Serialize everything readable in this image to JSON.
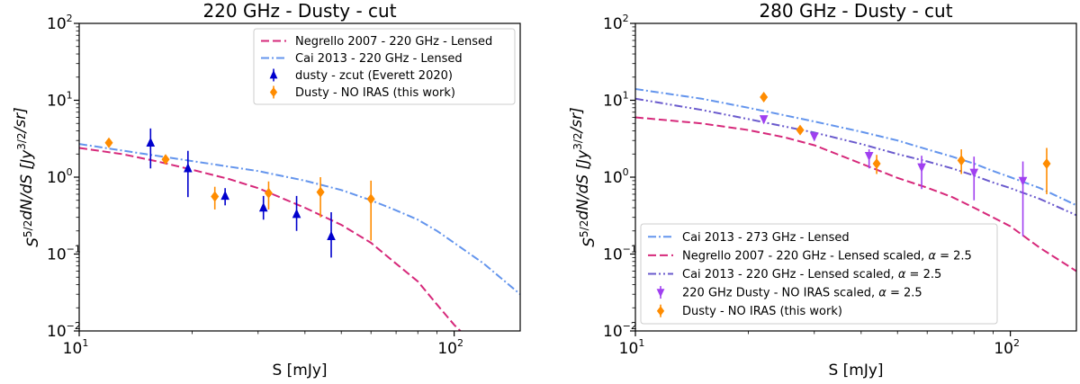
{
  "chart_data": [
    {
      "type": "scatter",
      "title": "220 GHz - Dusty - cut",
      "xlabel": "S [mJy]",
      "ylabel": "S^{5/2}dN/dS [Jy^{3/2}/sr]",
      "xscale": "log",
      "yscale": "log",
      "xlim": [
        10,
        150
      ],
      "ylim": [
        0.01,
        100
      ],
      "x_ticks": [
        {
          "value": 10,
          "base": "10",
          "exp": "1"
        },
        {
          "value": 100,
          "base": "10",
          "exp": "2"
        }
      ],
      "y_ticks": [
        {
          "value": 0.01,
          "base": "10",
          "exp": "−2"
        },
        {
          "value": 0.1,
          "base": "10",
          "exp": "−1"
        },
        {
          "value": 1,
          "base": "10",
          "exp": "0"
        },
        {
          "value": 10,
          "base": "10",
          "exp": "1"
        },
        {
          "value": 100,
          "base": "10",
          "exp": "2"
        }
      ],
      "legend_position": "top-right",
      "series": [
        {
          "name": "Negrello 2007 - 220 GHz - Lensed",
          "kind": "line",
          "style": "dashed",
          "color": "#d6287a",
          "x": [
            10,
            13,
            16,
            20,
            25,
            30,
            40,
            50,
            60,
            70,
            80,
            90,
            100,
            105
          ],
          "y": [
            2.4,
            2.0,
            1.62,
            1.25,
            0.95,
            0.72,
            0.4,
            0.24,
            0.14,
            0.075,
            0.044,
            0.022,
            0.012,
            0.0095
          ]
        },
        {
          "name": "Cai 2013 - 220 GHz - Lensed",
          "kind": "line",
          "style": "dashdot",
          "color": "#6495ed",
          "x": [
            10,
            15,
            20,
            30,
            40,
            50,
            60,
            70,
            80,
            90,
            100,
            120,
            150
          ],
          "y": [
            2.7,
            2.0,
            1.62,
            1.2,
            0.9,
            0.68,
            0.5,
            0.37,
            0.28,
            0.2,
            0.14,
            0.075,
            0.03
          ]
        },
        {
          "name": "dusty - zcut (Everett 2020)",
          "kind": "errorbar",
          "marker": "triangle-up",
          "color": "#0000cd",
          "x": [
            15.5,
            19.5,
            24.5,
            31,
            38,
            47
          ],
          "y": [
            2.8,
            1.3,
            0.57,
            0.4,
            0.33,
            0.17
          ],
          "yerr_low": [
            1.3,
            0.55,
            0.43,
            0.28,
            0.2,
            0.09
          ],
          "yerr_high": [
            4.3,
            2.2,
            0.72,
            0.57,
            0.57,
            0.35
          ]
        },
        {
          "name": "Dusty - NO IRAS (this work)",
          "kind": "errorbar",
          "marker": "diamond",
          "color": "#ff8c00",
          "x": [
            12,
            17,
            23,
            32,
            44,
            60
          ],
          "y": [
            2.8,
            1.7,
            0.56,
            0.62,
            0.64,
            0.52
          ],
          "yerr_low": [
            2.6,
            1.55,
            0.38,
            0.38,
            0.3,
            0.15
          ],
          "yerr_high": [
            3.0,
            1.85,
            0.75,
            0.88,
            1.0,
            0.9
          ]
        }
      ]
    },
    {
      "type": "scatter",
      "title": "280 GHz - Dusty - cut",
      "xlabel": "S [mJy]",
      "ylabel": "S^{5/2}dN/dS [Jy^{3/2}/sr]",
      "xscale": "log",
      "yscale": "log",
      "xlim": [
        10,
        150
      ],
      "ylim": [
        0.01,
        100
      ],
      "x_ticks": [
        {
          "value": 10,
          "base": "10",
          "exp": "1"
        },
        {
          "value": 100,
          "base": "10",
          "exp": "2"
        }
      ],
      "y_ticks": [
        {
          "value": 0.01,
          "base": "10",
          "exp": "−2"
        },
        {
          "value": 0.1,
          "base": "10",
          "exp": "−1"
        },
        {
          "value": 1,
          "base": "10",
          "exp": "0"
        },
        {
          "value": 10,
          "base": "10",
          "exp": "1"
        },
        {
          "value": 100,
          "base": "10",
          "exp": "2"
        }
      ],
      "legend_position": "bottom-right",
      "series": [
        {
          "name": "Cai 2013 - 273 GHz - Lensed",
          "kind": "line",
          "style": "dashdot",
          "color": "#6495ed",
          "x": [
            10,
            15,
            20,
            30,
            40,
            50,
            60,
            70,
            80,
            90,
            100,
            120,
            150
          ],
          "y": [
            14,
            10.5,
            8.0,
            5.3,
            3.9,
            3.0,
            2.3,
            1.85,
            1.5,
            1.2,
            1.0,
            0.72,
            0.43
          ]
        },
        {
          "name": "Negrello 2007 - 220 GHz - Lensed scaled, α = 2.5",
          "kind": "line",
          "style": "dashed",
          "color": "#d6287a",
          "x": [
            10,
            15,
            20,
            25,
            30,
            40,
            50,
            60,
            70,
            80,
            100,
            120,
            150
          ],
          "y": [
            6.0,
            5.0,
            4.1,
            3.3,
            2.6,
            1.5,
            0.98,
            0.73,
            0.55,
            0.4,
            0.23,
            0.12,
            0.06
          ]
        },
        {
          "name": "Cai 2013 - 220 GHz - Lensed scaled, α = 2.5",
          "kind": "line",
          "style": "dashdotdot",
          "color": "#6a5acd",
          "x": [
            10,
            15,
            20,
            30,
            40,
            50,
            60,
            70,
            80,
            90,
            100,
            120,
            150
          ],
          "y": [
            10.5,
            7.5,
            5.7,
            3.8,
            2.7,
            2.0,
            1.6,
            1.3,
            1.05,
            0.85,
            0.72,
            0.52,
            0.32
          ]
        },
        {
          "name": "220 GHz Dusty - NO IRAS scaled, α = 2.5",
          "kind": "errorbar",
          "marker": "triangle-down",
          "color": "#a040f0",
          "x": [
            22,
            30,
            42,
            58,
            80,
            108
          ],
          "y": [
            5.7,
            3.4,
            1.9,
            1.35,
            1.15,
            0.9
          ],
          "yerr_low": [
            5.3,
            3.1,
            1.3,
            0.7,
            0.5,
            0.17
          ],
          "yerr_high": [
            6.1,
            3.8,
            2.3,
            1.9,
            1.85,
            1.6
          ]
        },
        {
          "name": "Dusty - NO IRAS (this work)",
          "kind": "errorbar",
          "marker": "diamond",
          "color": "#ff8c00",
          "x": [
            22,
            27.5,
            44,
            74,
            125
          ],
          "y": [
            11,
            4.1,
            1.5,
            1.65,
            1.5
          ],
          "yerr_low": [
            10.3,
            3.8,
            1.1,
            1.1,
            0.6
          ],
          "yerr_high": [
            11.7,
            4.4,
            1.95,
            2.3,
            2.4
          ]
        }
      ]
    }
  ]
}
